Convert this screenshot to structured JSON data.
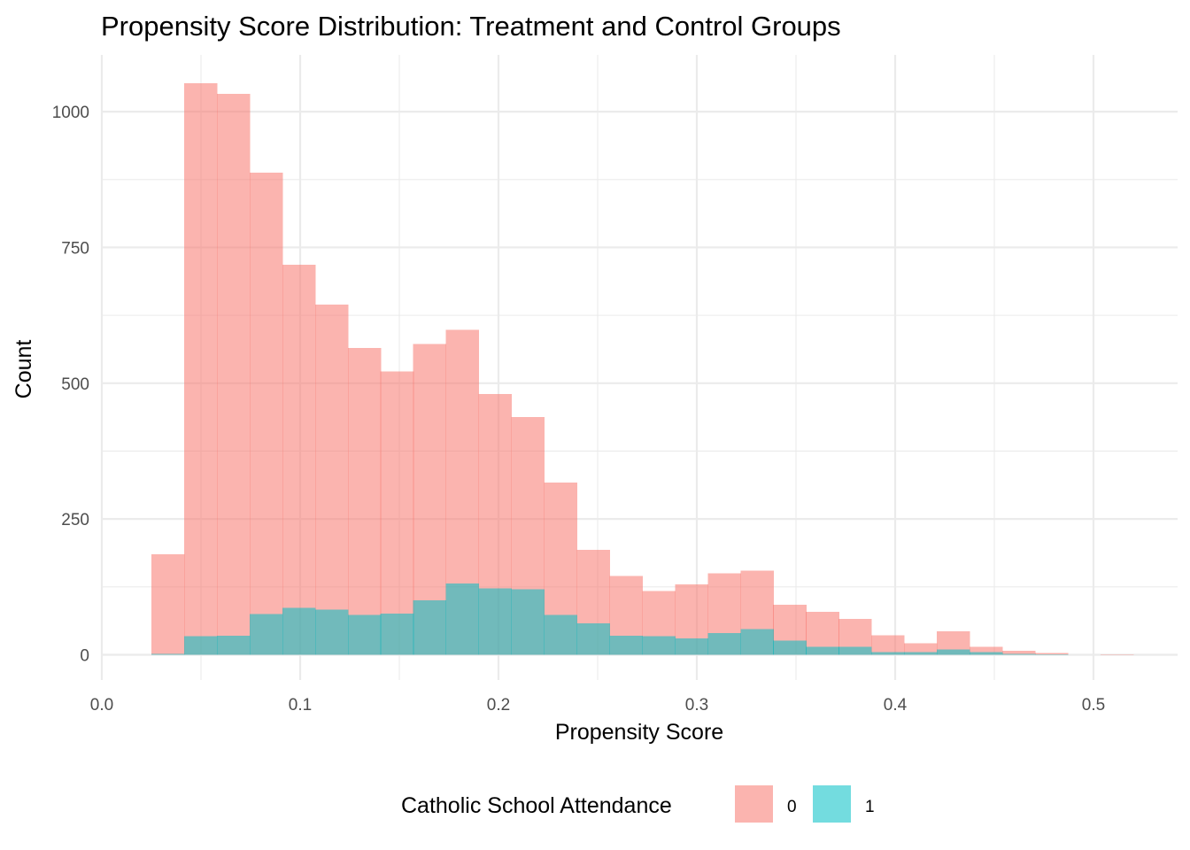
{
  "chart_data": {
    "type": "bar",
    "subtype": "overlaid-histogram",
    "title": "Propensity Score Distribution: Treatment and Control Groups",
    "xlabel": "Propensity Score",
    "ylabel": "Count",
    "xlim": [
      0.0,
      0.54
    ],
    "ylim": [
      0,
      1090
    ],
    "xticks": [
      0.0,
      0.1,
      0.2,
      0.3,
      0.4,
      0.5
    ],
    "xtick_labels": [
      "0.0",
      "0.1",
      "0.2",
      "0.3",
      "0.4",
      "0.5"
    ],
    "yticks": [
      0,
      250,
      500,
      750,
      1000
    ],
    "ytick_labels": [
      "0",
      "250",
      "500",
      "750",
      "1000"
    ],
    "grid": true,
    "legend_position": "bottom",
    "legend_title": "Catholic School Attendance",
    "bin_width": 0.0165,
    "bin_starts": [
      0.025,
      0.0415,
      0.058,
      0.0745,
      0.091,
      0.1075,
      0.124,
      0.1405,
      0.157,
      0.1735,
      0.19,
      0.2065,
      0.223,
      0.2395,
      0.256,
      0.2725,
      0.289,
      0.3055,
      0.322,
      0.3385,
      0.355,
      0.3715,
      0.388,
      0.4045,
      0.421,
      0.4375,
      0.454,
      0.4705,
      0.487,
      0.5035
    ],
    "series": [
      {
        "name": "0",
        "color": "#F8766D",
        "values": [
          185,
          1052,
          1033,
          888,
          718,
          645,
          565,
          522,
          572,
          598,
          480,
          438,
          317,
          193,
          145,
          117,
          130,
          150,
          155,
          92,
          79,
          66,
          36,
          21,
          43,
          15,
          7,
          3,
          0,
          1
        ]
      },
      {
        "name": "1",
        "color": "#00BFC4",
        "values": [
          2,
          34,
          35,
          75,
          86,
          83,
          73,
          76,
          100,
          131,
          122,
          121,
          73,
          58,
          35,
          34,
          30,
          40,
          47,
          26,
          15,
          15,
          5,
          5,
          10,
          5,
          2,
          1,
          0,
          0
        ]
      }
    ]
  },
  "legend": {
    "title": "Catholic School Attendance",
    "items": [
      {
        "label": "0",
        "color": "#F8766D"
      },
      {
        "label": "1",
        "color": "#00BFC4"
      }
    ]
  }
}
